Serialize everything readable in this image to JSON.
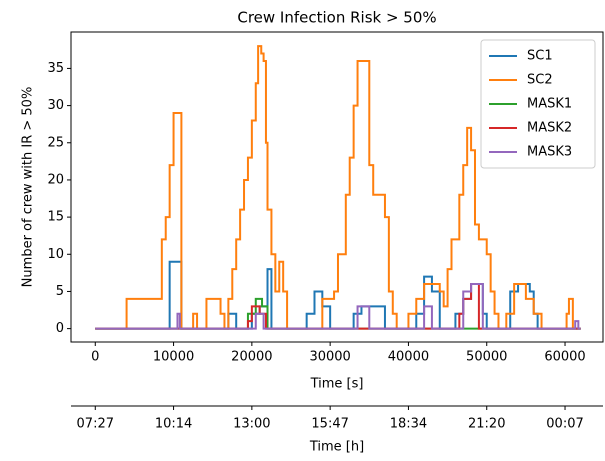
{
  "chart_data": {
    "type": "line",
    "drawstyle": "steps-post",
    "title": "Crew Infection Risk > 50%",
    "xlabel": "Time [s]",
    "ylabel": "Number of crew with IR > 50%",
    "x2label": "Time [h]",
    "xlim": [
      -3100,
      64850
    ],
    "ylim": [
      -1.8,
      39.9
    ],
    "xticks": [
      0,
      10000,
      20000,
      30000,
      40000,
      50000,
      60000
    ],
    "yticks": [
      0,
      5,
      10,
      15,
      20,
      25,
      30,
      35
    ],
    "x2ticks": [
      {
        "value": 0,
        "label": "07:27"
      },
      {
        "value": 10000,
        "label": "10:14"
      },
      {
        "value": 20000,
        "label": "13:00"
      },
      {
        "value": 30000,
        "label": "15:47"
      },
      {
        "value": 40000,
        "label": "18:34"
      },
      {
        "value": 50000,
        "label": "21:20"
      },
      {
        "value": 60000,
        "label": "00:07"
      }
    ],
    "legend": "upper right",
    "series": [
      {
        "name": "SC1",
        "color": "#1f77b4",
        "x": [
          0,
          9500,
          11000,
          17000,
          18000,
          20000,
          21000,
          22000,
          22500,
          27000,
          28000,
          29000,
          30000,
          33000,
          34000,
          37000,
          41000,
          42000,
          43000,
          44000,
          46000,
          47000,
          48000,
          49500,
          50000,
          53000,
          54000,
          55500,
          56000,
          56500,
          62000
        ],
        "values": [
          0,
          9,
          0,
          2,
          0,
          2,
          3,
          8,
          0,
          2,
          5,
          3,
          0,
          2,
          3,
          0,
          2,
          7,
          5,
          0,
          2,
          4,
          6,
          2,
          0,
          5,
          6,
          5,
          2,
          0,
          0
        ]
      },
      {
        "name": "SC2",
        "color": "#ff7f0e",
        "x": [
          0,
          4000,
          8500,
          9000,
          9500,
          10000,
          11000,
          12500,
          13000,
          14200,
          16000,
          16500,
          17000,
          17500,
          18000,
          18500,
          19000,
          19500,
          20000,
          20500,
          20800,
          21200,
          21500,
          21800,
          22000,
          22500,
          23000,
          23500,
          24000,
          24500,
          29000,
          30500,
          31000,
          32000,
          32500,
          33000,
          33500,
          34500,
          35000,
          35500,
          37000,
          37500,
          38000,
          38500,
          40000,
          41000,
          42000,
          44000,
          44500,
          45000,
          45500,
          46500,
          47000,
          47500,
          48000,
          48500,
          49000,
          50000,
          50500,
          51000,
          51500,
          52500,
          53500,
          55000,
          56000,
          57000,
          60200,
          60500,
          61000,
          62000
        ],
        "values": [
          0,
          4,
          12,
          15,
          22,
          29,
          0,
          2,
          0,
          4,
          2,
          0,
          4,
          8,
          12,
          16,
          20,
          23,
          28,
          33,
          38,
          37,
          36,
          25,
          16,
          10,
          5,
          9,
          5,
          0,
          4,
          5,
          10,
          18,
          23,
          30,
          36,
          36,
          22,
          18,
          15,
          5,
          2,
          0,
          2,
          4,
          6,
          5,
          3,
          8,
          12,
          18,
          22,
          27,
          24,
          14,
          12,
          10,
          5,
          2,
          0,
          2,
          6,
          4,
          2,
          0,
          2,
          4,
          0,
          0
        ]
      },
      {
        "name": "MASK1",
        "color": "#2ca02c",
        "x": [
          0,
          19500,
          20500,
          21300,
          22000,
          62000
        ],
        "values": [
          0,
          2,
          4,
          3,
          0,
          0
        ]
      },
      {
        "name": "MASK2",
        "color": "#d62728",
        "x": [
          0,
          19500,
          20000,
          21000,
          21800,
          46500,
          47000,
          48000,
          49000,
          62000
        ],
        "values": [
          0,
          1,
          3,
          2,
          0,
          2,
          4,
          6,
          0,
          0
        ]
      },
      {
        "name": "MASK3",
        "color": "#9467bd",
        "x": [
          0,
          10500,
          10800,
          20500,
          21500,
          33500,
          35000,
          42000,
          43000,
          47000,
          48000,
          49500,
          61300,
          61700,
          62000
        ],
        "values": [
          0,
          2,
          0,
          2,
          0,
          3,
          0,
          3,
          0,
          5,
          6,
          0,
          1,
          0,
          0
        ]
      }
    ]
  }
}
